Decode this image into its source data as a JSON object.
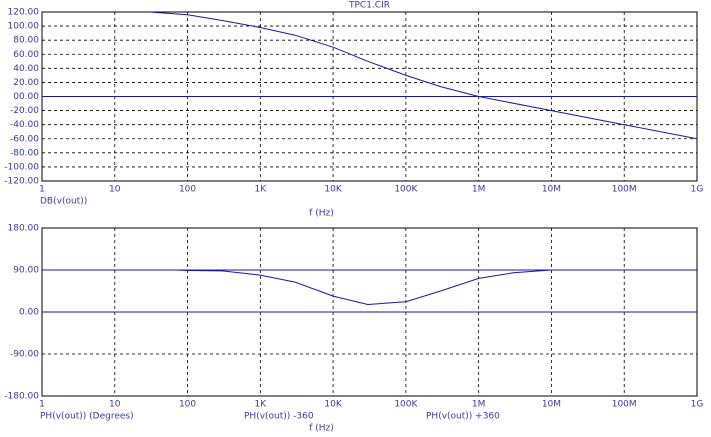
{
  "chart_data": [
    {
      "type": "line",
      "title": "TPC1.CIR",
      "x_label": "f (Hz)",
      "log_x": true,
      "grid": true,
      "xlim": [
        1,
        1000000000
      ],
      "xticks": [
        1,
        10,
        100,
        {
          "value": 1000,
          "label": "1K"
        },
        {
          "value": 10000,
          "label": "10K"
        },
        {
          "value": 100000,
          "label": "100K"
        },
        {
          "value": 1000000,
          "label": "1M"
        },
        {
          "value": 10000000,
          "label": "10M"
        },
        {
          "value": 100000000,
          "label": "100M"
        },
        {
          "value": 1000000000,
          "label": "1G"
        }
      ],
      "ylim": [
        -120,
        120
      ],
      "yticks": [
        {
          "value": 120,
          "label": "120.00"
        },
        {
          "value": 100,
          "label": "100.00"
        },
        {
          "value": 80,
          "label": "80.00"
        },
        {
          "value": 60,
          "label": "60.00"
        },
        {
          "value": 40,
          "label": "40.00"
        },
        {
          "value": 20,
          "label": "20.00"
        },
        {
          "value": 0,
          "label": "00.00"
        },
        {
          "value": -20,
          "label": "-20.00"
        },
        {
          "value": -40,
          "label": "-40.00"
        },
        {
          "value": -60,
          "label": "-60.00"
        },
        {
          "value": -80,
          "label": "-80.00"
        },
        {
          "value": -100,
          "label": "-100.00"
        },
        {
          "value": -120,
          "label": "-120.00"
        }
      ],
      "reference_lines": [
        0
      ],
      "series": [
        {
          "name": "DB(v(out))",
          "color": "#1818a8",
          "x": [
            30,
            100,
            300,
            1000,
            3000,
            10000,
            30000,
            100000,
            300000,
            1000000,
            10000000,
            100000000,
            1000000000
          ],
          "values": [
            120,
            116,
            108,
            98,
            87,
            70,
            50,
            30,
            14,
            0,
            -20,
            -40,
            -60
          ]
        }
      ]
    },
    {
      "type": "line",
      "x_label": "f (Hz)",
      "log_x": true,
      "grid": true,
      "xlim": [
        1,
        1000000000
      ],
      "xticks": [
        1,
        10,
        100,
        {
          "value": 1000,
          "label": "1K"
        },
        {
          "value": 10000,
          "label": "10K"
        },
        {
          "value": 100000,
          "label": "100K"
        },
        {
          "value": 1000000,
          "label": "1M"
        },
        {
          "value": 10000000,
          "label": "10M"
        },
        {
          "value": 100000000,
          "label": "100M"
        },
        {
          "value": 1000000000,
          "label": "1G"
        }
      ],
      "ylim": [
        -180,
        180
      ],
      "yticks": [
        {
          "value": 180,
          "label": "180.00"
        },
        {
          "value": 90,
          "label": "90.00"
        },
        {
          "value": 0,
          "label": "0.00"
        },
        {
          "value": -90,
          "label": "-90.00"
        },
        {
          "value": -180,
          "label": "-180.00"
        }
      ],
      "series": [
        {
          "name": "PH(v(out)) (Degrees)",
          "color": "#1818a8",
          "x": [
            70,
            100,
            300,
            1000,
            3000,
            10000,
            30000,
            100000,
            300000,
            1000000,
            3000000,
            10000000
          ],
          "values": [
            90,
            89,
            88,
            79,
            64,
            34,
            16,
            22,
            45,
            72,
            84,
            90
          ]
        },
        {
          "name": "PH(v(out)) -360",
          "color": "#1818a8",
          "x": [
            1,
            1000000000
          ],
          "values": [
            90,
            90
          ]
        },
        {
          "name": "PH(v(out)) +360",
          "color": "#1818a8",
          "x": [
            1,
            1000000000
          ],
          "values": [
            0,
            0
          ]
        }
      ]
    }
  ]
}
